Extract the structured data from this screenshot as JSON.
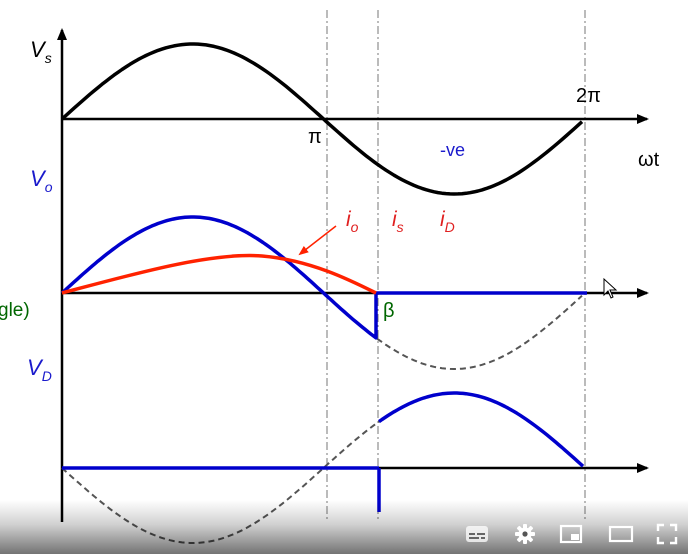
{
  "labels": {
    "vs": "V",
    "vs_sub": "s",
    "vo": "V",
    "vo_sub": "o",
    "vd": "V",
    "vd_sub": "D",
    "pi": "π",
    "two_pi": "2π",
    "neg": "-ve",
    "omega_t": "ωt",
    "io": "i",
    "io_sub": "o",
    "is": "i",
    "is_sub": "s",
    "id": "i",
    "id_sub": "D",
    "beta": "β",
    "angle_fragment": "gle)"
  },
  "colors": {
    "axis": "#000000",
    "source": "#000000",
    "output": "#0000cc",
    "current": "#ff2200",
    "dashed": "#555555",
    "guide": "#777777",
    "label_blue": "#1a1acc",
    "label_red": "#e02020",
    "label_green": "#006600"
  },
  "player_controls": {
    "icons": [
      "subtitles-icon",
      "settings-icon",
      "miniplayer-icon",
      "theater-icon",
      "fullscreen-icon"
    ]
  }
}
